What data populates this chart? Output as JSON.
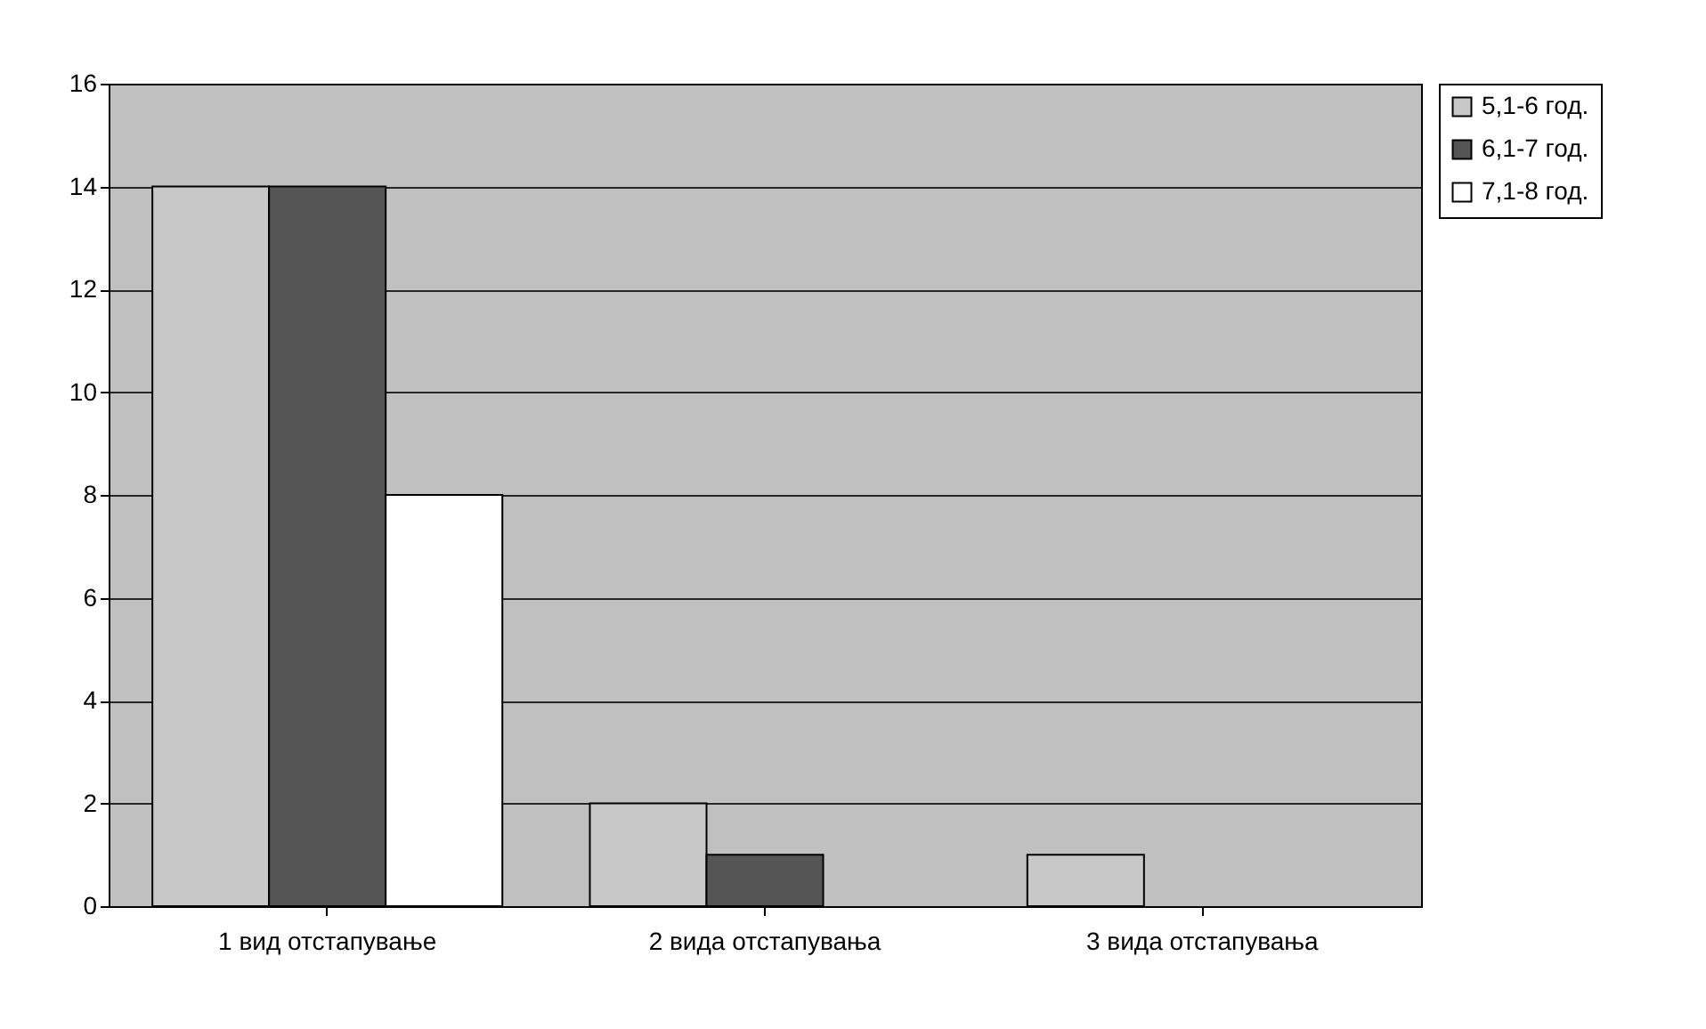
{
  "chart_data": {
    "type": "bar",
    "categories": [
      "1 вид отстапување",
      "2 вида отстапувања",
      "3 вида отстапувања"
    ],
    "series": [
      {
        "name": "5,1-6 год.",
        "color": "#c8c8c8",
        "values": [
          14,
          2,
          1
        ]
      },
      {
        "name": "6,1-7 год.",
        "color": "#555555",
        "values": [
          14,
          1,
          0
        ]
      },
      {
        "name": "7,1-8 год.",
        "color": "#ffffff",
        "values": [
          8,
          0,
          0
        ]
      }
    ],
    "ylim": [
      0,
      16
    ],
    "yticks": [
      0,
      2,
      4,
      6,
      8,
      10,
      12,
      14,
      16
    ],
    "grid": "y",
    "legend": "right"
  }
}
